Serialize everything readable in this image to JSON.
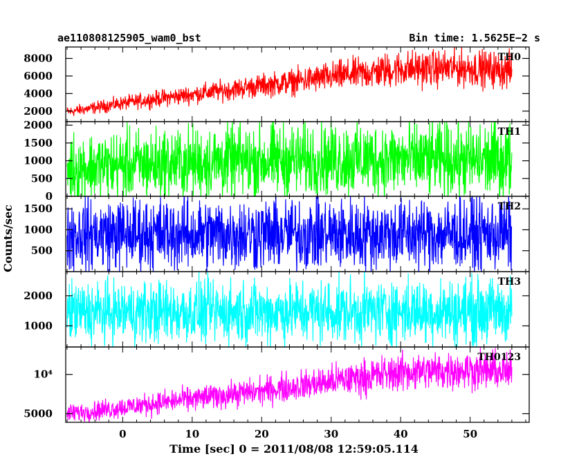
{
  "chart_data": {
    "type": "line",
    "title_left": "ae110808125905_wam0_bst",
    "title_right": "Bin time: 1.5625E−2 s",
    "xlabel": "Time [sec] 0 = 2011/08/08 12:59:05.114",
    "ylabel": "Counts/sec",
    "xlim": [
      -8.2,
      58.5
    ],
    "x_ticks": [
      0,
      10,
      20,
      30,
      40,
      50
    ],
    "x_range": [
      -8,
      56
    ],
    "panels": [
      {
        "name": "TH0",
        "color": "#ff0000",
        "ylim": [
          800,
          9300
        ],
        "y_ticks": [
          2000,
          4000,
          6000,
          8000
        ],
        "y_tick_labels": [
          "2000",
          "4000",
          "6000",
          "8000"
        ],
        "trend": [
          [
            -8,
            1900
          ],
          [
            0,
            2900
          ],
          [
            10,
            3900
          ],
          [
            20,
            4900
          ],
          [
            30,
            5900
          ],
          [
            40,
            6800
          ],
          [
            50,
            6900
          ],
          [
            56,
            6600
          ]
        ],
        "spread": [
          [
            -8,
            1100
          ],
          [
            20,
            2400
          ],
          [
            40,
            3800
          ],
          [
            56,
            3800
          ]
        ]
      },
      {
        "name": "TH1",
        "color": "#00ff00",
        "ylim": [
          0,
          2100
        ],
        "y_ticks": [
          0,
          500,
          1000,
          1500,
          2000
        ],
        "y_tick_labels": [
          "0",
          "500",
          "1000",
          "1500",
          "2000"
        ],
        "trend": [
          [
            -8,
            800
          ],
          [
            10,
            950
          ],
          [
            30,
            1050
          ],
          [
            56,
            1000
          ]
        ],
        "spread": [
          [
            -8,
            1800
          ],
          [
            56,
            2000
          ]
        ]
      },
      {
        "name": "TH2",
        "color": "#0000ff",
        "ylim": [
          0,
          1800
        ],
        "y_ticks": [
          500,
          1000,
          1500
        ],
        "y_tick_labels": [
          "500",
          "1000",
          "1500"
        ],
        "trend": [
          [
            -8,
            900
          ],
          [
            56,
            900
          ]
        ],
        "spread": [
          [
            -8,
            1600
          ],
          [
            56,
            1600
          ]
        ]
      },
      {
        "name": "TH3",
        "color": "#00ffff",
        "ylim": [
          300,
          2800
        ],
        "y_ticks": [
          1000,
          2000
        ],
        "y_tick_labels": [
          "1000",
          "2000"
        ],
        "trend": [
          [
            -8,
            1450
          ],
          [
            56,
            1500
          ]
        ],
        "spread": [
          [
            -8,
            1900
          ],
          [
            56,
            2000
          ]
        ]
      },
      {
        "name": "TH0123",
        "color": "#ff00ff",
        "ylim": [
          3900,
          13500
        ],
        "y_ticks": [
          5000,
          10000
        ],
        "y_tick_labels": [
          "5000",
          "10⁴"
        ],
        "trend": [
          [
            -8,
            5000
          ],
          [
            0,
            5800
          ],
          [
            10,
            6900
          ],
          [
            20,
            7900
          ],
          [
            30,
            9100
          ],
          [
            40,
            10300
          ],
          [
            50,
            10600
          ],
          [
            56,
            10300
          ]
        ],
        "spread": [
          [
            -8,
            2200
          ],
          [
            20,
            3200
          ],
          [
            40,
            4500
          ],
          [
            56,
            4500
          ]
        ]
      }
    ]
  }
}
